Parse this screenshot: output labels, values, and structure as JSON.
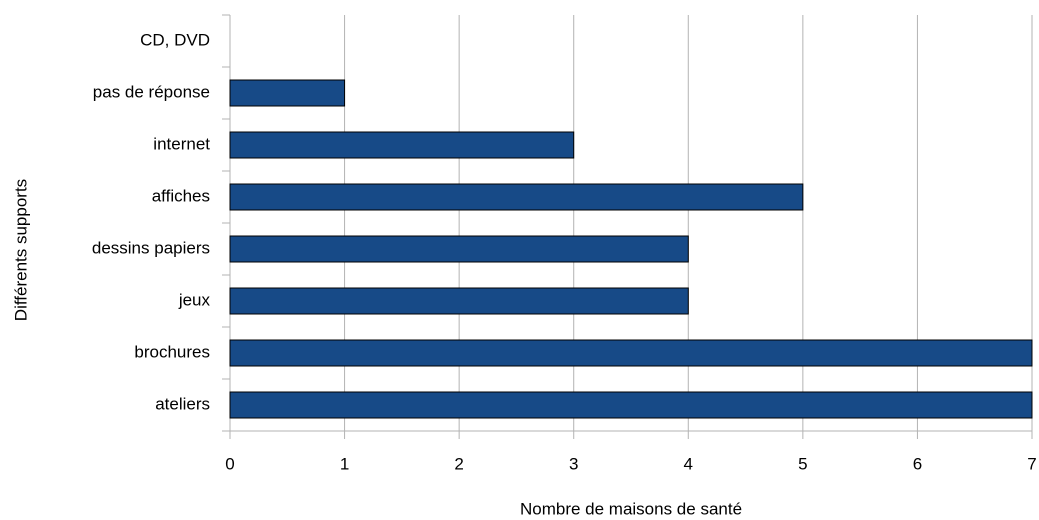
{
  "chart_data": {
    "type": "barh",
    "categories": [
      "CD, DVD",
      "pas de réponse",
      "internet",
      "affiches",
      "dessins papiers",
      "jeux",
      "brochures",
      "ateliers"
    ],
    "values": [
      0,
      1,
      3,
      5,
      4,
      4,
      7,
      7
    ],
    "color": "#174a87",
    "xlabel": "Nombre de maisons de santé",
    "ylabel": "Différents supports",
    "xlim": [
      0,
      7
    ],
    "xticks": [
      0,
      1,
      2,
      3,
      4,
      5,
      6,
      7
    ],
    "grid": true
  }
}
